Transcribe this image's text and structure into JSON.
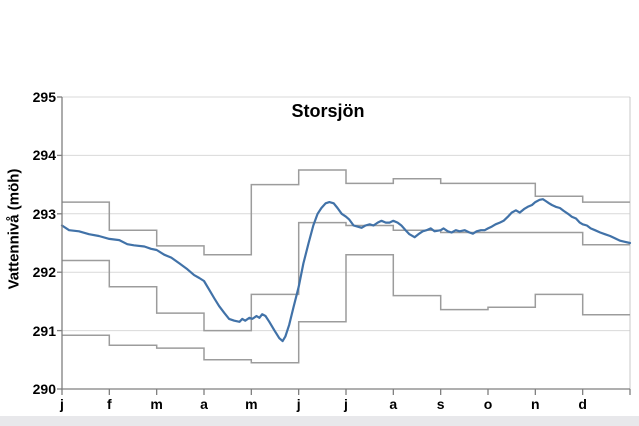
{
  "page": {
    "background_color": "#ffffff",
    "footer_strip_color": "#e8e8eb"
  },
  "chart_data": {
    "type": "line",
    "title": "Storsjön",
    "ylabel": "Vattennivå (möh)",
    "xlabel": "",
    "ylim": [
      290,
      295
    ],
    "yticks": [
      295,
      294,
      293,
      292,
      291,
      290
    ],
    "ytick_labels": [
      "295",
      "294",
      "293",
      "292",
      "291",
      "290"
    ],
    "month_labels": [
      "j",
      "f",
      "m",
      "a",
      "m",
      "j",
      "j",
      "a",
      "s",
      "o",
      "n",
      "d"
    ],
    "grid": "horizontal",
    "legend": "none",
    "colors": {
      "grid": "#d9d9d9",
      "axis": "#7f7f7f",
      "plot_border": "#c9c9c9",
      "step_lines": "#9c9c9c",
      "water_level": "#4172a8"
    },
    "series": [
      {
        "name": "upper-limit-line",
        "style": "step-monthly",
        "color": "#9c9c9c",
        "monthly_values": [
          293.2,
          292.72,
          292.45,
          292.3,
          293.5,
          293.75,
          293.52,
          293.6,
          293.52,
          293.52,
          293.3,
          293.2
        ]
      },
      {
        "name": "middle-reference-line",
        "style": "step-monthly",
        "color": "#9c9c9c",
        "monthly_values": [
          292.2,
          291.75,
          291.3,
          291.0,
          291.62,
          292.85,
          292.8,
          292.72,
          292.68,
          292.68,
          292.68,
          292.47
        ]
      },
      {
        "name": "lower-limit-line",
        "style": "step-monthly",
        "color": "#9c9c9c",
        "monthly_values": [
          290.92,
          290.75,
          290.7,
          290.5,
          290.45,
          291.15,
          292.3,
          291.6,
          291.36,
          291.4,
          291.62,
          291.27
        ]
      },
      {
        "name": "water-level",
        "style": "line",
        "color": "#4172a8",
        "points": [
          [
            0.0,
            292.8
          ],
          [
            0.15,
            292.72
          ],
          [
            0.36,
            292.7
          ],
          [
            0.57,
            292.65
          ],
          [
            0.78,
            292.62
          ],
          [
            1.0,
            292.57
          ],
          [
            1.21,
            292.55
          ],
          [
            1.38,
            292.48
          ],
          [
            1.52,
            292.46
          ],
          [
            1.74,
            292.44
          ],
          [
            1.88,
            292.4
          ],
          [
            2.0,
            292.38
          ],
          [
            2.16,
            292.3
          ],
          [
            2.31,
            292.25
          ],
          [
            2.48,
            292.15
          ],
          [
            2.65,
            292.05
          ],
          [
            2.79,
            291.95
          ],
          [
            2.9,
            291.9
          ],
          [
            3.0,
            291.85
          ],
          [
            3.11,
            291.7
          ],
          [
            3.22,
            291.55
          ],
          [
            3.32,
            291.42
          ],
          [
            3.43,
            291.3
          ],
          [
            3.53,
            291.2
          ],
          [
            3.64,
            291.17
          ],
          [
            3.75,
            291.15
          ],
          [
            3.81,
            291.2
          ],
          [
            3.87,
            291.17
          ],
          [
            3.96,
            291.22
          ],
          [
            4.02,
            291.2
          ],
          [
            4.11,
            291.25
          ],
          [
            4.17,
            291.22
          ],
          [
            4.23,
            291.28
          ],
          [
            4.3,
            291.25
          ],
          [
            4.38,
            291.15
          ],
          [
            4.49,
            291.0
          ],
          [
            4.59,
            290.87
          ],
          [
            4.66,
            290.82
          ],
          [
            4.72,
            290.9
          ],
          [
            4.8,
            291.1
          ],
          [
            4.89,
            291.4
          ],
          [
            5.0,
            291.75
          ],
          [
            5.1,
            292.15
          ],
          [
            5.21,
            292.5
          ],
          [
            5.31,
            292.8
          ],
          [
            5.4,
            293.0
          ],
          [
            5.48,
            293.1
          ],
          [
            5.57,
            293.18
          ],
          [
            5.65,
            293.2
          ],
          [
            5.74,
            293.18
          ],
          [
            5.82,
            293.1
          ],
          [
            5.91,
            293.0
          ],
          [
            6.0,
            292.95
          ],
          [
            6.07,
            292.9
          ],
          [
            6.16,
            292.8
          ],
          [
            6.24,
            292.78
          ],
          [
            6.33,
            292.76
          ],
          [
            6.41,
            292.8
          ],
          [
            6.5,
            292.82
          ],
          [
            6.58,
            292.8
          ],
          [
            6.67,
            292.85
          ],
          [
            6.75,
            292.88
          ],
          [
            6.84,
            292.85
          ],
          [
            6.92,
            292.85
          ],
          [
            7.0,
            292.88
          ],
          [
            7.09,
            292.85
          ],
          [
            7.17,
            292.8
          ],
          [
            7.26,
            292.72
          ],
          [
            7.34,
            292.65
          ],
          [
            7.45,
            292.6
          ],
          [
            7.53,
            292.65
          ],
          [
            7.62,
            292.7
          ],
          [
            7.7,
            292.72
          ],
          [
            7.79,
            292.75
          ],
          [
            7.87,
            292.7
          ],
          [
            8.0,
            292.72
          ],
          [
            8.06,
            292.75
          ],
          [
            8.15,
            292.7
          ],
          [
            8.23,
            292.68
          ],
          [
            8.32,
            292.72
          ],
          [
            8.4,
            292.7
          ],
          [
            8.51,
            292.72
          ],
          [
            8.61,
            292.68
          ],
          [
            8.68,
            292.66
          ],
          [
            8.76,
            292.7
          ],
          [
            8.85,
            292.72
          ],
          [
            8.93,
            292.72
          ],
          [
            9.0,
            292.75
          ],
          [
            9.08,
            292.78
          ],
          [
            9.16,
            292.82
          ],
          [
            9.25,
            292.85
          ],
          [
            9.33,
            292.88
          ],
          [
            9.42,
            292.95
          ],
          [
            9.5,
            293.02
          ],
          [
            9.59,
            293.06
          ],
          [
            9.67,
            293.02
          ],
          [
            9.76,
            293.08
          ],
          [
            9.84,
            293.12
          ],
          [
            9.93,
            293.15
          ],
          [
            10.0,
            293.2
          ],
          [
            10.09,
            293.24
          ],
          [
            10.16,
            293.25
          ],
          [
            10.22,
            293.22
          ],
          [
            10.29,
            293.18
          ],
          [
            10.35,
            293.15
          ],
          [
            10.43,
            293.12
          ],
          [
            10.52,
            293.1
          ],
          [
            10.6,
            293.05
          ],
          [
            10.69,
            293.0
          ],
          [
            10.77,
            292.95
          ],
          [
            10.86,
            292.92
          ],
          [
            10.94,
            292.85
          ],
          [
            11.0,
            292.82
          ],
          [
            11.09,
            292.8
          ],
          [
            11.17,
            292.75
          ],
          [
            11.26,
            292.72
          ],
          [
            11.37,
            292.68
          ],
          [
            11.47,
            292.65
          ],
          [
            11.58,
            292.62
          ],
          [
            11.68,
            292.58
          ],
          [
            11.79,
            292.54
          ],
          [
            11.89,
            292.52
          ],
          [
            12.0,
            292.5
          ]
        ]
      }
    ]
  }
}
